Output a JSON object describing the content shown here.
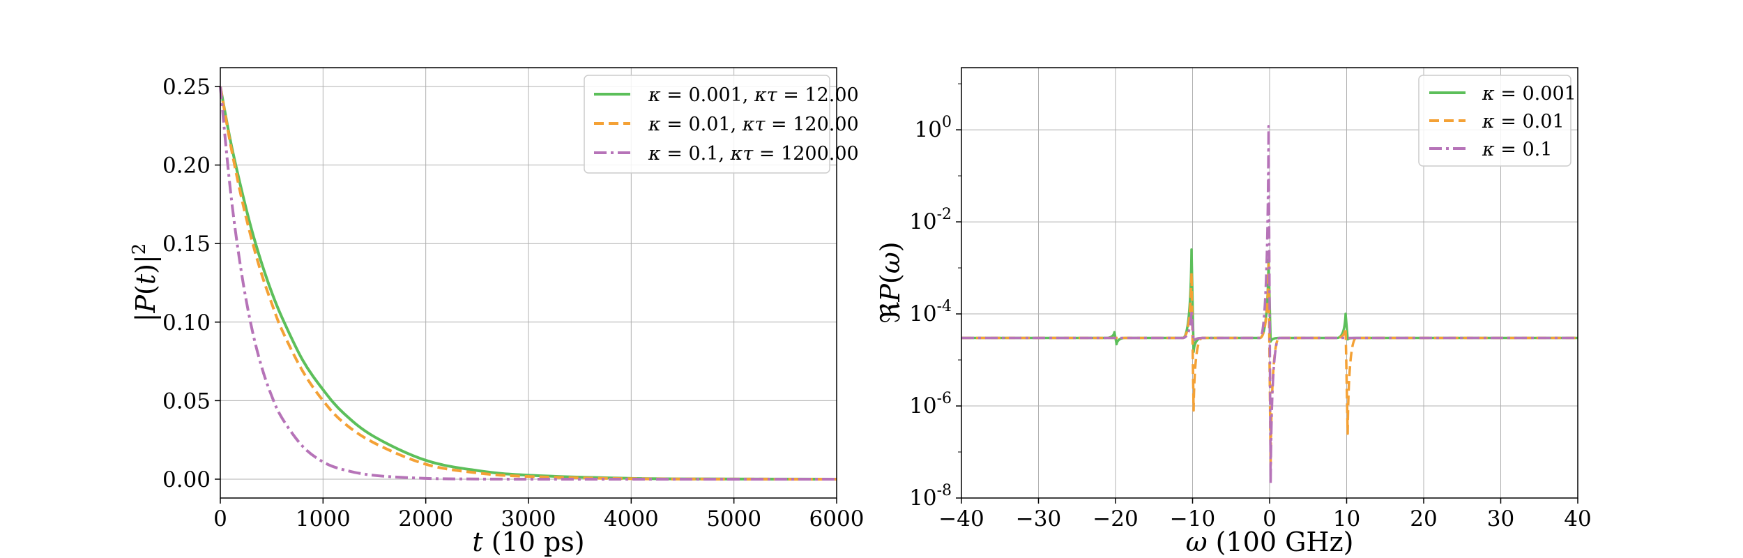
{
  "chart_data": [
    {
      "type": "line",
      "xlabel": "t (10 ps)",
      "ylabel": "|P(t)|²",
      "xlim": [
        0,
        6000
      ],
      "ylim": [
        -0.012,
        0.262
      ],
      "xticks": [
        "0",
        "1000",
        "2000",
        "3000",
        "4000",
        "5000",
        "6000"
      ],
      "xtick_values": [
        0,
        1000,
        2000,
        3000,
        4000,
        5000,
        6000
      ],
      "yticks": [
        "0.00",
        "0.05",
        "0.10",
        "0.15",
        "0.20",
        "0.25"
      ],
      "ytick_values": [
        0,
        0.05,
        0.1,
        0.15,
        0.2,
        0.25
      ],
      "grid": true,
      "legend_position": "top-right",
      "x": [
        0,
        100,
        200,
        300,
        400,
        500,
        600,
        800,
        1000,
        1200,
        1500,
        2000,
        2500,
        3000,
        4000,
        5000,
        6000
      ],
      "series": [
        {
          "name": "κ = 0.001, κτ = 12.00",
          "color": "#5cbf5a",
          "dash": "solid",
          "values": [
            0.25,
            0.215,
            0.186,
            0.16,
            0.138,
            0.119,
            0.103,
            0.076,
            0.057,
            0.042,
            0.027,
            0.012,
            0.0055,
            0.0025,
            0.0005,
            0.0001,
            0.0
          ]
        },
        {
          "name": "κ = 0.01, κτ = 120.00",
          "color": "#f4a135",
          "dash": "dashed",
          "values": [
            0.25,
            0.213,
            0.181,
            0.154,
            0.131,
            0.112,
            0.095,
            0.069,
            0.05,
            0.036,
            0.023,
            0.0095,
            0.004,
            0.0017,
            0.0003,
            5e-05,
            0.0
          ]
        },
        {
          "name": "κ = 0.1, κτ = 1200.00",
          "color": "#b673b8",
          "dash": "dashdot",
          "values": [
            0.25,
            0.183,
            0.134,
            0.098,
            0.072,
            0.053,
            0.039,
            0.021,
            0.011,
            0.006,
            0.0024,
            0.0005,
            0.0001,
            0.0,
            0.0,
            0.0,
            0.0
          ]
        }
      ]
    },
    {
      "type": "line",
      "xlabel": "ω (100 GHz)",
      "ylabel": "ℜP(ω)",
      "xlim": [
        -40,
        40
      ],
      "ylim_log10": [
        -8,
        1.35
      ],
      "yscale": "log",
      "xticks": [
        "−40",
        "−30",
        "−20",
        "−10",
        "0",
        "10",
        "20",
        "30",
        "40"
      ],
      "xtick_values": [
        -40,
        -30,
        -20,
        -10,
        0,
        10,
        20,
        30,
        40
      ],
      "yticks": [
        "10^0",
        "10^-2",
        "10^-4",
        "10^-6",
        "10^-8"
      ],
      "ytick_values_log10": [
        0,
        -2,
        -4,
        -6,
        -8
      ],
      "grid": true,
      "legend_position": "top-right",
      "baseline_value": 3e-05,
      "series": [
        {
          "name": "κ = 0.001",
          "color": "#5cbf5a",
          "dash": "solid",
          "features": [
            {
              "x": -20,
              "peak": 4e-05,
              "dip": 2.2e-05
            },
            {
              "x": -10,
              "peak": 0.0025,
              "dip": 1.5e-05
            },
            {
              "x": 0,
              "peak": 0.0015,
              "dip": 2.5e-05
            },
            {
              "x": 10,
              "peak": 0.0001,
              "dip": 2.8e-05
            }
          ]
        },
        {
          "name": "κ = 0.01",
          "color": "#f4a135",
          "dash": "dashed",
          "features": [
            {
              "x": -10,
              "peak": 0.0008,
              "dip": 8e-07
            },
            {
              "x": 0,
              "peak": 0.0012,
              "dip": 5e-08
            },
            {
              "x": 10,
              "peak": 5e-05,
              "dip": 2.5e-07
            }
          ]
        },
        {
          "name": "κ = 0.1",
          "color": "#b673b8",
          "dash": "dashdot",
          "features": [
            {
              "x": -10,
              "peak": 0.00012,
              "dip": 2.5e-05
            },
            {
              "x": 0,
              "peak": 1.2,
              "dip": 2e-08
            }
          ]
        }
      ]
    }
  ]
}
